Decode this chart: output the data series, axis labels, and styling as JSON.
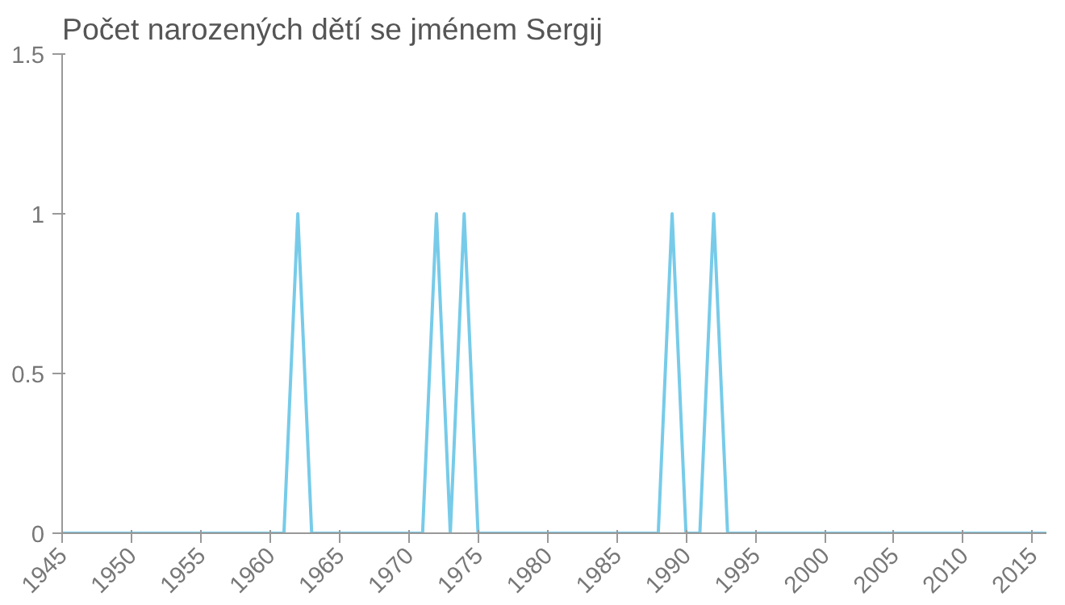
{
  "chart_data": {
    "type": "line",
    "title": "Počet narozených dětí se jménem Sergij",
    "x": [
      1945,
      1946,
      1947,
      1948,
      1949,
      1950,
      1951,
      1952,
      1953,
      1954,
      1955,
      1956,
      1957,
      1958,
      1959,
      1960,
      1961,
      1962,
      1963,
      1964,
      1965,
      1966,
      1967,
      1968,
      1969,
      1970,
      1971,
      1972,
      1973,
      1974,
      1975,
      1976,
      1977,
      1978,
      1979,
      1980,
      1981,
      1982,
      1983,
      1984,
      1985,
      1986,
      1987,
      1988,
      1989,
      1990,
      1991,
      1992,
      1993,
      1994,
      1995,
      1996,
      1997,
      1998,
      1999,
      2000,
      2001,
      2002,
      2003,
      2004,
      2005,
      2006,
      2007,
      2008,
      2009,
      2010,
      2011,
      2012,
      2013,
      2014,
      2015,
      2016
    ],
    "series": [
      {
        "color": "#77cbe9",
        "values": [
          0,
          0,
          0,
          0,
          0,
          0,
          0,
          0,
          0,
          0,
          0,
          0,
          0,
          0,
          0,
          0,
          0,
          1,
          0,
          0,
          0,
          0,
          0,
          0,
          0,
          0,
          0,
          1,
          0,
          1,
          0,
          0,
          0,
          0,
          0,
          0,
          0,
          0,
          0,
          0,
          0,
          0,
          0,
          0,
          1,
          0,
          0,
          1,
          0,
          0,
          0,
          0,
          0,
          0,
          0,
          0,
          0,
          0,
          0,
          0,
          0,
          0,
          0,
          0,
          0,
          0,
          0,
          0,
          0,
          0,
          0,
          0
        ]
      }
    ],
    "xlim": [
      1945,
      2016
    ],
    "ylim": [
      0,
      1.5
    ],
    "xticks": [
      1945,
      1950,
      1955,
      1960,
      1965,
      1970,
      1975,
      1980,
      1985,
      1990,
      1995,
      2000,
      2005,
      2010,
      2015
    ],
    "yticks": [
      0,
      0.5,
      1,
      1.5
    ],
    "grid": false,
    "marker": "none",
    "line_style": "solid"
  }
}
